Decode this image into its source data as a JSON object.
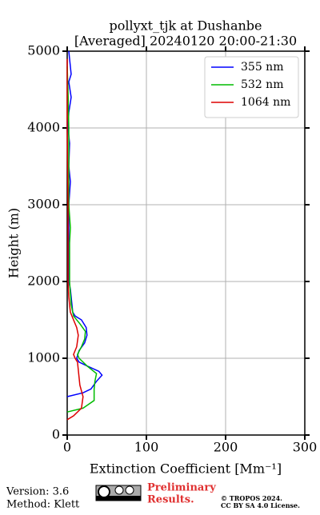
{
  "chart_data": {
    "type": "line",
    "title": "pollyxt_tjk at Dushanbe",
    "subtitle": "[Averaged] 20240120 20:00-21:30",
    "xlabel": "Extinction Coefficient [Mm⁻¹]",
    "ylabel": "Height (m)",
    "xlim": [
      0,
      300
    ],
    "xticks": [
      0,
      100,
      200,
      300
    ],
    "ylim": [
      0,
      5000
    ],
    "yticks": [
      0,
      1000,
      2000,
      3000,
      4000,
      5000
    ],
    "grid": true,
    "legend": "upper right",
    "series": [
      {
        "name": "355 nm",
        "color": "#0000ff",
        "x": [
          0,
          20,
          30,
          37,
          44,
          40,
          25,
          15,
          12,
          15,
          22,
          25,
          24,
          18,
          10,
          7,
          6,
          4,
          2,
          2,
          2,
          4,
          2,
          3,
          1,
          2,
          5,
          2,
          5,
          3,
          2
        ],
        "values": [
          500,
          550,
          600,
          700,
          780,
          830,
          900,
          950,
          1000,
          1100,
          1200,
          1300,
          1400,
          1500,
          1550,
          1600,
          1700,
          1900,
          2000,
          2500,
          3000,
          3300,
          3500,
          3800,
          4000,
          4200,
          4400,
          4600,
          4700,
          4900,
          5000
        ]
      },
      {
        "name": "532 nm",
        "color": "#00bb00",
        "x": [
          0,
          20,
          34,
          34,
          35,
          37,
          25,
          15,
          13,
          18,
          22,
          23,
          16,
          8,
          5,
          3,
          3,
          4,
          2,
          2,
          1,
          0
        ],
        "values": [
          300,
          350,
          450,
          600,
          700,
          800,
          900,
          1000,
          1050,
          1150,
          1250,
          1350,
          1450,
          1550,
          1700,
          2000,
          2500,
          2700,
          3000,
          4000,
          4500,
          4800
        ]
      },
      {
        "name": "1064 nm",
        "color": "#dd0000",
        "x": [
          0,
          8,
          18,
          20,
          16,
          15,
          14,
          13,
          10,
          8,
          12,
          14,
          12,
          8,
          4,
          2,
          1,
          1,
          0,
          0
        ],
        "values": [
          200,
          250,
          350,
          500,
          650,
          750,
          850,
          950,
          1000,
          1050,
          1150,
          1300,
          1400,
          1500,
          1600,
          1800,
          2000,
          3000,
          4000,
          4900
        ]
      }
    ]
  },
  "footer": {
    "version": "Version: 3.6",
    "method": "Method: Klett",
    "preliminary": "Preliminary",
    "results": "Results.",
    "copyright": "© TROPOS 2024.",
    "license": "CC BY SA 4.0 License."
  }
}
